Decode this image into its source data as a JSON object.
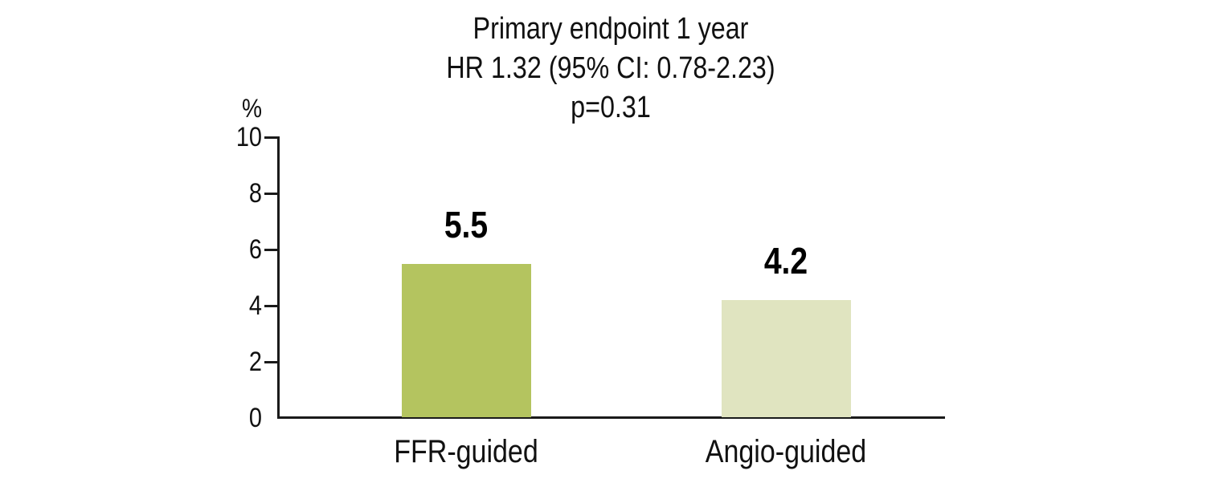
{
  "chart_data": {
    "type": "bar",
    "title_lines": [
      "Primary endpoint 1 year",
      "HR 1.32 (95% CI: 0.78-2.23)",
      "p=0.31"
    ],
    "ylabel": "%",
    "ylim": [
      0,
      10
    ],
    "yticks": [
      0,
      2,
      4,
      6,
      8,
      10
    ],
    "categories": [
      "FFR-guided",
      "Angio-guided"
    ],
    "values": [
      5.5,
      4.2
    ],
    "value_labels": [
      "5.5",
      "4.2"
    ],
    "series": [
      {
        "name": "FFR-guided",
        "value": 5.5,
        "color": "#b4c45f"
      },
      {
        "name": "Angio-guided",
        "value": 4.2,
        "color": "#e0e4c0"
      }
    ],
    "bar_colors": [
      "#b4c45f",
      "#e0e4c0"
    ],
    "axis_color": "#1a1a1a",
    "text_color": "#111111",
    "background_color": "#ffffff",
    "grid": false,
    "legend": "none"
  }
}
